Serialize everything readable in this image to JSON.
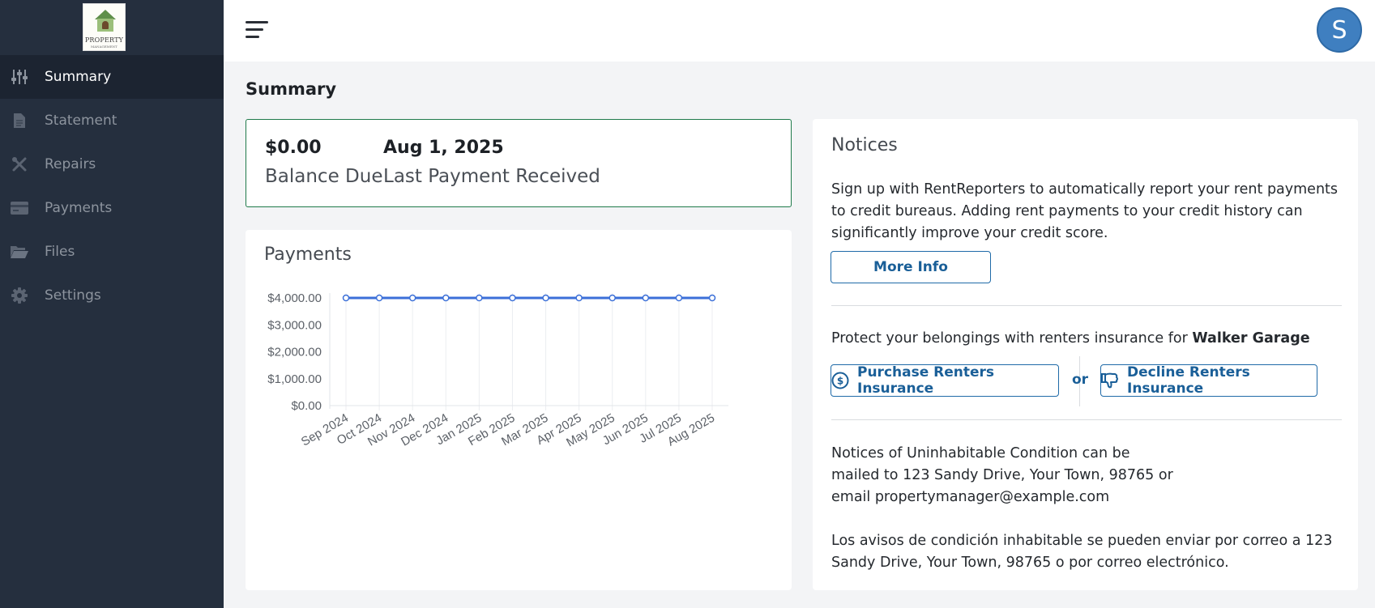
{
  "app": {
    "logo_text": "PROPERTY",
    "logo_subtext": "MANAGEMENT",
    "avatar_initial": "S"
  },
  "sidebar": {
    "items": [
      {
        "label": "Summary",
        "icon": "sliders-icon",
        "active": true
      },
      {
        "label": "Statement",
        "icon": "document-icon",
        "active": false
      },
      {
        "label": "Repairs",
        "icon": "tools-icon",
        "active": false
      },
      {
        "label": "Payments",
        "icon": "credit-card-icon",
        "active": false
      },
      {
        "label": "Files",
        "icon": "folder-open-icon",
        "active": false
      },
      {
        "label": "Settings",
        "icon": "gear-icon",
        "active": false
      }
    ]
  },
  "page": {
    "title": "Summary"
  },
  "balance": {
    "amount": "$0.00",
    "amount_label": "Balance Due",
    "last_payment_date": "Aug 1, 2025",
    "last_payment_label": "Last Payment Received"
  },
  "payments": {
    "title": "Payments"
  },
  "chart_data": {
    "type": "line",
    "title": "",
    "xlabel": "",
    "ylabel": "",
    "categories": [
      "Sep 2024",
      "Oct 2024",
      "Nov 2024",
      "Dec 2024",
      "Jan 2025",
      "Feb 2025",
      "Mar 2025",
      "Apr 2025",
      "May 2025",
      "Jun 2025",
      "Jul 2025",
      "Aug 2025"
    ],
    "series": [
      {
        "values": [
          4000,
          4000,
          4000,
          4000,
          4000,
          4000,
          4000,
          4000,
          4000,
          4000,
          4000,
          4000
        ],
        "color": "#3b6fd8"
      }
    ],
    "yticks": [
      0,
      1000,
      2000,
      3000,
      4000
    ],
    "ytick_labels": [
      "$0.00",
      "$1,000.00",
      "$2,000.00",
      "$3,000.00",
      "$4,000.00"
    ],
    "ylim": [
      0,
      4000
    ],
    "grid": "vertical"
  },
  "notices": {
    "title": "Notices",
    "rent_reporters_text": "Sign up with RentReporters to automatically report your rent payments to credit bureaus. Adding rent payments to your credit history can significantly improve your credit score.",
    "more_info_label": "More Info",
    "insurance_text": "Protect your belongings with renters insurance for ",
    "insurance_property": "Walker Garage",
    "purchase_label": "Purchase Renters Insurance",
    "or_label": "or",
    "decline_label": "Decline Renters Insurance",
    "uninhabitable_en": "Notices of Uninhabitable Condition can be mailed to 123 Sandy Drive, Your Town, 98765 or email propertymanager@example.com",
    "uninhabitable_es": "Los avisos de condición inhabitable se pueden enviar por correo a 123 Sandy Drive, Your Town, 98765 o por correo electrónico."
  },
  "colors": {
    "sidebar_bg": "#252f3e",
    "sidebar_active_bg": "#1c2431",
    "accent": "#1a5f98",
    "balance_border": "#1f7a4a",
    "avatar_bg": "#3f7fc0",
    "chart_line": "#3b6fd8"
  }
}
